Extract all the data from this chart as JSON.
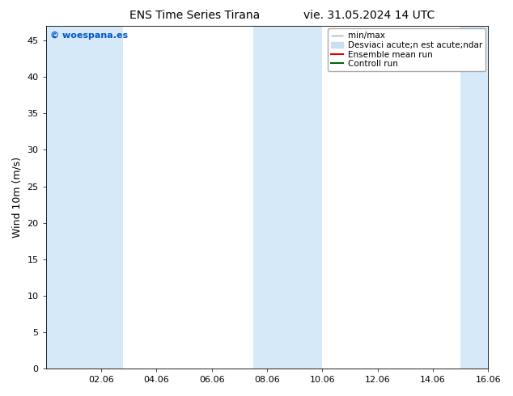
{
  "title_left": "ENS Time Series Tirana",
  "title_right": "vie. 31.05.2024 14 UTC",
  "ylabel": "Wind 10m (m/s)",
  "ylim": [
    0,
    47
  ],
  "yticks": [
    0,
    5,
    10,
    15,
    20,
    25,
    30,
    35,
    40,
    45
  ],
  "watermark": "© woespana.es",
  "watermark_color": "#0055cc",
  "background_color": "#ffffff",
  "plot_bg_color": "#ffffff",
  "shading_color": "#d6e9f8",
  "legend_label_minmax": "min/max",
  "legend_label_std": "Desviaci acute;n est acute;ndar",
  "legend_label_mean": "Ensemble mean run",
  "legend_label_ctrl": "Controll run",
  "legend_color_minmax": "#aaaaaa",
  "legend_color_std": "#c8dff0",
  "legend_color_mean": "#dd0000",
  "legend_color_ctrl": "#006600",
  "xlim_start": 0.0,
  "xlim_end": 16.0,
  "xtick_positions": [
    2,
    4,
    6,
    8,
    10,
    12,
    14,
    16
  ],
  "xtick_labels": [
    "02.06",
    "04.06",
    "06.06",
    "08.06",
    "10.06",
    "12.06",
    "14.06",
    "16.06"
  ],
  "shaded_bands": [
    [
      0.0,
      1.5
    ],
    [
      1.5,
      2.8
    ],
    [
      7.5,
      10.0
    ],
    [
      15.0,
      16.0
    ]
  ],
  "font_size_title": 10,
  "font_size_axis": 9,
  "font_size_tick": 8,
  "font_size_legend": 7.5,
  "font_size_watermark": 8
}
